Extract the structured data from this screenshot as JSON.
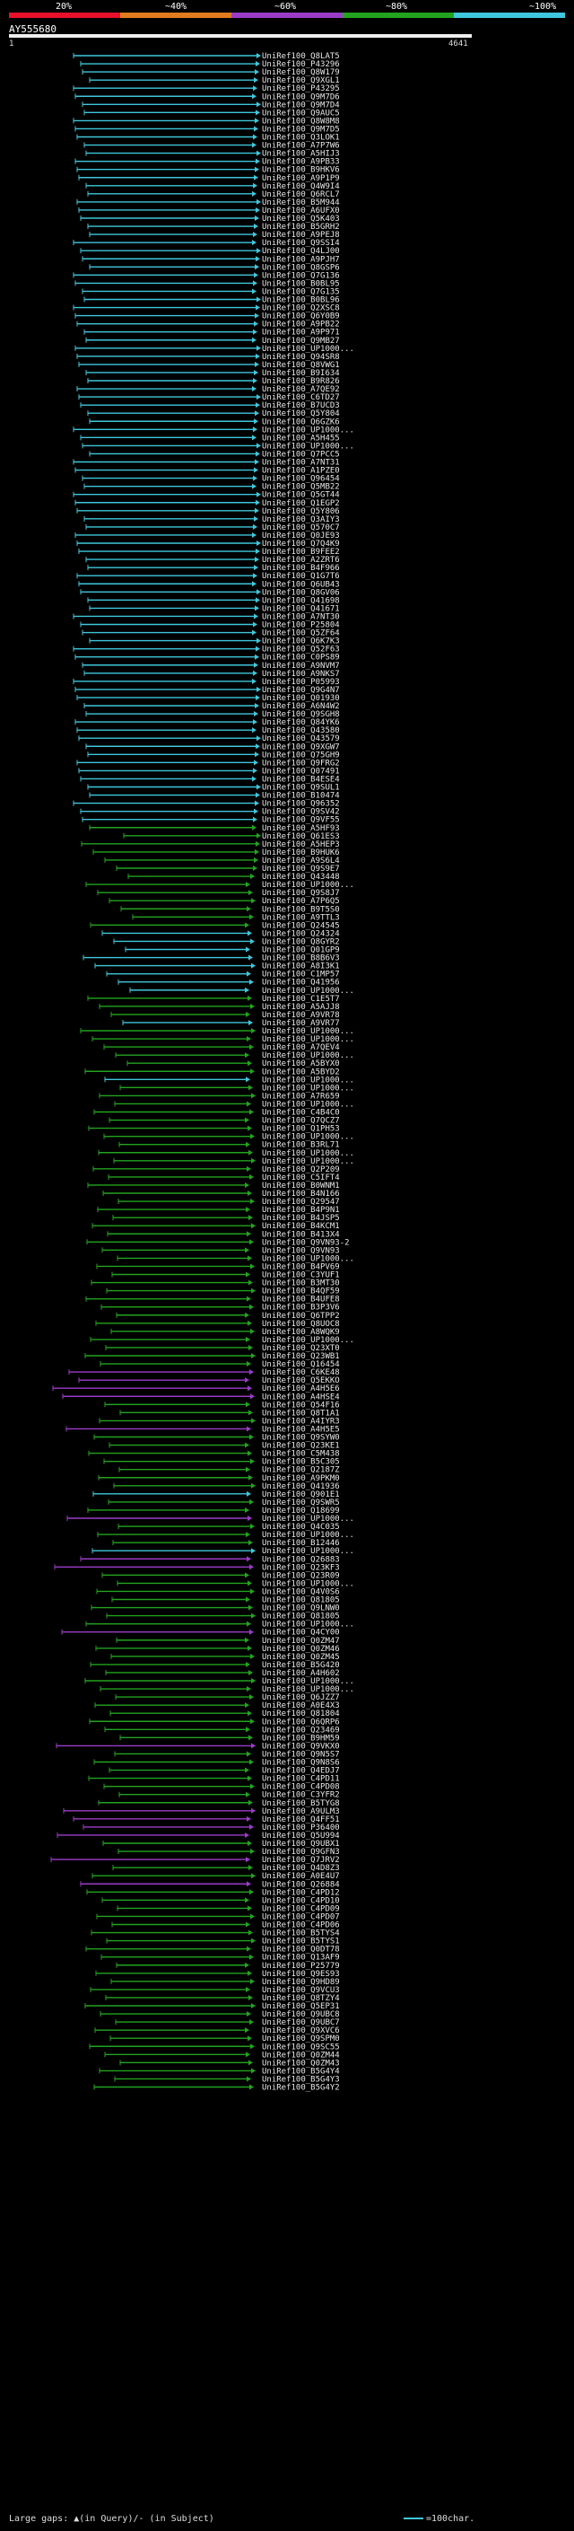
{
  "scale": {
    "ticks": [
      "20%",
      "~40%",
      "~60%",
      "~80%",
      "~100%"
    ],
    "colors": [
      "#e8102b",
      "#e07b20",
      "#9b3cc8",
      "#23a31f",
      "#3fc7db"
    ]
  },
  "query": {
    "title": "AY555680",
    "start": "1",
    "end": "4641"
  },
  "footer": {
    "gaps": "Large gaps: ▲(in Query)/- (in Subject)",
    "scale_label": "=100char."
  },
  "hits": [
    {
      "label": "UniRef100_Q8LAT5",
      "color": "#3fc7db"
    },
    {
      "label": "UniRef100_P43296",
      "color": "#3fc7db"
    },
    {
      "label": "UniRef100_Q8W179",
      "color": "#3fc7db"
    },
    {
      "label": "UniRef100_Q9XGL1",
      "color": "#3fc7db"
    },
    {
      "label": "UniRef100_P43295",
      "color": "#3fc7db"
    },
    {
      "label": "UniRef100_Q9M7D6",
      "color": "#3fc7db"
    },
    {
      "label": "UniRef100_Q9M7D4",
      "color": "#3fc7db"
    },
    {
      "label": "UniRef100_Q9AUC5",
      "color": "#3fc7db"
    },
    {
      "label": "UniRef100_Q8W8M8",
      "color": "#3fc7db"
    },
    {
      "label": "UniRef100_Q9M7D5",
      "color": "#3fc7db"
    },
    {
      "label": "UniRef100_Q3LOK1",
      "color": "#3fc7db"
    },
    {
      "label": "UniRef100_A7P7W6",
      "color": "#3fc7db"
    },
    {
      "label": "UniRef100_A5HIJ3",
      "color": "#3fc7db"
    },
    {
      "label": "UniRef100_A9PB33",
      "color": "#3fc7db"
    },
    {
      "label": "UniRef100_B9HKV6",
      "color": "#3fc7db"
    },
    {
      "label": "UniRef100_A9P1P9",
      "color": "#3fc7db"
    },
    {
      "label": "UniRef100_Q4W9I4",
      "color": "#3fc7db"
    },
    {
      "label": "UniRef100_Q6RCL7",
      "color": "#3fc7db"
    },
    {
      "label": "UniRef100_B5M944",
      "color": "#3fc7db"
    },
    {
      "label": "UniRef100_A6UFX0",
      "color": "#3fc7db"
    },
    {
      "label": "UniRef100_Q5K403",
      "color": "#3fc7db"
    },
    {
      "label": "UniRef100_B5GRH2",
      "color": "#3fc7db"
    },
    {
      "label": "UniRef100_A9PEJ8",
      "color": "#3fc7db"
    },
    {
      "label": "UniRef100_Q9SSI4",
      "color": "#3fc7db"
    },
    {
      "label": "UniRef100_Q4LJ00",
      "color": "#3fc7db"
    },
    {
      "label": "UniRef100_A9PJH7",
      "color": "#3fc7db"
    },
    {
      "label": "UniRef100_Q8GSP6",
      "color": "#3fc7db"
    },
    {
      "label": "UniRef100_Q7G136",
      "color": "#3fc7db"
    },
    {
      "label": "UniRef100_B0BL95",
      "color": "#3fc7db"
    },
    {
      "label": "UniRef100_Q7G135",
      "color": "#3fc7db"
    },
    {
      "label": "UniRef100_B0BL96",
      "color": "#3fc7db"
    },
    {
      "label": "UniRef100_Q2XSC8",
      "color": "#3fc7db"
    },
    {
      "label": "UniRef100_Q6Y0B9",
      "color": "#3fc7db"
    },
    {
      "label": "UniRef100_A9PB22",
      "color": "#3fc7db"
    },
    {
      "label": "UniRef100_A9P971",
      "color": "#3fc7db"
    },
    {
      "label": "UniRef100_Q9MB27",
      "color": "#3fc7db"
    },
    {
      "label": "UniRef100_UP1000...",
      "color": "#3fc7db"
    },
    {
      "label": "UniRef100_Q94SR8",
      "color": "#3fc7db"
    },
    {
      "label": "UniRef100_Q8VWG1",
      "color": "#3fc7db"
    },
    {
      "label": "UniRef100_B9I634",
      "color": "#3fc7db"
    },
    {
      "label": "UniRef100_B9R826",
      "color": "#3fc7db"
    },
    {
      "label": "UniRef100_A7QE92",
      "color": "#3fc7db"
    },
    {
      "label": "UniRef100_C6TD27",
      "color": "#3fc7db"
    },
    {
      "label": "UniRef100_B7UCD3",
      "color": "#3fc7db"
    },
    {
      "label": "UniRef100_Q5Y804",
      "color": "#3fc7db"
    },
    {
      "label": "UniRef100_Q6GZK6",
      "color": "#3fc7db"
    },
    {
      "label": "UniRef100_UP1000...",
      "color": "#3fc7db"
    },
    {
      "label": "UniRef100_A5H455",
      "color": "#3fc7db"
    },
    {
      "label": "UniRef100_UP1000...",
      "color": "#3fc7db"
    },
    {
      "label": "UniRef100_Q7PCC5",
      "color": "#3fc7db"
    },
    {
      "label": "UniRef100_A7NT31",
      "color": "#3fc7db"
    },
    {
      "label": "UniRef100_A1PZE0",
      "color": "#3fc7db"
    },
    {
      "label": "UniRef100_Q96454",
      "color": "#3fc7db"
    },
    {
      "label": "UniRef100_Q5MB22",
      "color": "#3fc7db"
    },
    {
      "label": "UniRef100_Q5GT44",
      "color": "#3fc7db"
    },
    {
      "label": "UniRef100_Q1EGP2",
      "color": "#3fc7db"
    },
    {
      "label": "UniRef100_Q5Y806",
      "color": "#3fc7db"
    },
    {
      "label": "UniRef100_Q3AIY3",
      "color": "#3fc7db"
    },
    {
      "label": "UniRef100_Q570C7",
      "color": "#3fc7db"
    },
    {
      "label": "UniRef100_Q0JE93",
      "color": "#3fc7db"
    },
    {
      "label": "UniRef100_Q7Q4K9",
      "color": "#3fc7db"
    },
    {
      "label": "UniRef100_B9FEE2",
      "color": "#3fc7db"
    },
    {
      "label": "UniRef100_A2ZRT6",
      "color": "#3fc7db"
    },
    {
      "label": "UniRef100_B4F966",
      "color": "#3fc7db"
    },
    {
      "label": "UniRef100_Q1G7T6",
      "color": "#3fc7db"
    },
    {
      "label": "UniRef100_Q6UB43",
      "color": "#3fc7db"
    },
    {
      "label": "UniRef100_Q8GV06",
      "color": "#3fc7db"
    },
    {
      "label": "UniRef100_Q41698",
      "color": "#3fc7db"
    },
    {
      "label": "UniRef100_Q41671",
      "color": "#3fc7db"
    },
    {
      "label": "UniRef100_A7NT30",
      "color": "#3fc7db"
    },
    {
      "label": "UniRef100_P25804",
      "color": "#3fc7db"
    },
    {
      "label": "UniRef100_Q5ZF64",
      "color": "#3fc7db"
    },
    {
      "label": "UniRef100_Q6K7K3",
      "color": "#3fc7db"
    },
    {
      "label": "UniRef100_Q52F63",
      "color": "#3fc7db"
    },
    {
      "label": "UniRef100_C0PS89",
      "color": "#3fc7db"
    },
    {
      "label": "UniRef100_A9NVM7",
      "color": "#3fc7db"
    },
    {
      "label": "UniRef100_A9NKS7",
      "color": "#3fc7db"
    },
    {
      "label": "UniRef100_P05993",
      "color": "#3fc7db"
    },
    {
      "label": "UniRef100_Q9G4N7",
      "color": "#3fc7db"
    },
    {
      "label": "UniRef100_Q01930",
      "color": "#3fc7db"
    },
    {
      "label": "UniRef100_A6N4W2",
      "color": "#3fc7db"
    },
    {
      "label": "UniRef100_Q9SGH8",
      "color": "#3fc7db"
    },
    {
      "label": "UniRef100_Q84YK6",
      "color": "#3fc7db"
    },
    {
      "label": "UniRef100_Q43580",
      "color": "#3fc7db"
    },
    {
      "label": "UniRef100_Q43579",
      "color": "#3fc7db"
    },
    {
      "label": "UniRef100_Q9XGW7",
      "color": "#3fc7db"
    },
    {
      "label": "UniRef100_Q75GH9",
      "color": "#3fc7db"
    },
    {
      "label": "UniRef100_Q9FRG2",
      "color": "#3fc7db"
    },
    {
      "label": "UniRef100_Q07491",
      "color": "#3fc7db"
    },
    {
      "label": "UniRef100_B4ESE4",
      "color": "#3fc7db"
    },
    {
      "label": "UniRef100_Q9SUL1",
      "color": "#3fc7db"
    },
    {
      "label": "UniRef100_B10474",
      "color": "#3fc7db"
    },
    {
      "label": "UniRef100_Q96352",
      "color": "#3fc7db"
    },
    {
      "label": "UniRef100_Q9SV42",
      "color": "#3fc7db"
    },
    {
      "label": "UniRef100_Q9VF55",
      "color": "#3fc7db"
    },
    {
      "label": "UniRef100_A5HF93",
      "color": "#23a31f"
    },
    {
      "label": "UniRef100_Q61ES3",
      "color": "#23a31f"
    },
    {
      "label": "UniRef100_A5HEP3",
      "color": "#23a31f"
    },
    {
      "label": "UniRef100_B9HUK6",
      "color": "#23a31f"
    },
    {
      "label": "UniRef100_A9S6L4",
      "color": "#23a31f"
    },
    {
      "label": "UniRef100_Q9S9E7",
      "color": "#23a31f"
    },
    {
      "label": "UniRef100_Q43448",
      "color": "#23a31f"
    },
    {
      "label": "UniRef100_UP1000...",
      "color": "#23a31f"
    },
    {
      "label": "UniRef100_Q9S8J7",
      "color": "#23a31f"
    },
    {
      "label": "UniRef100_A7P6Q5",
      "color": "#23a31f"
    },
    {
      "label": "UniRef100_B9T5S0",
      "color": "#23a31f"
    },
    {
      "label": "UniRef100_A9TTL3",
      "color": "#23a31f"
    },
    {
      "label": "UniRef100_Q24545",
      "color": "#23a31f"
    },
    {
      "label": "UniRef100_Q24324",
      "color": "#3fc7db"
    },
    {
      "label": "UniRef100_Q8GYR2",
      "color": "#3fc7db"
    },
    {
      "label": "UniRef100_Q01GP9",
      "color": "#3fc7db"
    },
    {
      "label": "UniRef100_B8B6V3",
      "color": "#3fc7db"
    },
    {
      "label": "UniRef100_A8I3K1",
      "color": "#3fc7db"
    },
    {
      "label": "UniRef100_C1MP57",
      "color": "#3fc7db"
    },
    {
      "label": "UniRef100_Q41956",
      "color": "#3fc7db"
    },
    {
      "label": "UniRef100_UP1000...",
      "color": "#3fc7db"
    },
    {
      "label": "UniRef100_C1E5T7",
      "color": "#23a31f"
    },
    {
      "label": "UniRef100_A5AJJ8",
      "color": "#23a31f"
    },
    {
      "label": "UniRef100_A9VR78",
      "color": "#23a31f"
    },
    {
      "label": "UniRef100_A9VR77",
      "color": "#3fc7db"
    },
    {
      "label": "UniRef100_UP1000...",
      "color": "#23a31f"
    },
    {
      "label": "UniRef100_UP1000...",
      "color": "#23a31f"
    },
    {
      "label": "UniRef100_A7QEV4",
      "color": "#23a31f"
    },
    {
      "label": "UniRef100_UP1000...",
      "color": "#23a31f"
    },
    {
      "label": "UniRef100_A5BYX0",
      "color": "#23a31f"
    },
    {
      "label": "UniRef100_A5BYD2",
      "color": "#23a31f"
    },
    {
      "label": "UniRef100_UP1000...",
      "color": "#3fc7db"
    },
    {
      "label": "UniRef100_UP1000...",
      "color": "#23a31f"
    },
    {
      "label": "UniRef100_A7R659",
      "color": "#23a31f"
    },
    {
      "label": "UniRef100_UP1000...",
      "color": "#23a31f"
    },
    {
      "label": "UniRef100_C4B4C0",
      "color": "#23a31f"
    },
    {
      "label": "UniRef100_Q7QCZ7",
      "color": "#23a31f"
    },
    {
      "label": "UniRef100_Q1PH53",
      "color": "#23a31f"
    },
    {
      "label": "UniRef100_UP1000...",
      "color": "#23a31f"
    },
    {
      "label": "UniRef100_B3RL71",
      "color": "#23a31f"
    },
    {
      "label": "UniRef100_UP1000...",
      "color": "#23a31f"
    },
    {
      "label": "UniRef100_UP1000...",
      "color": "#23a31f"
    },
    {
      "label": "UniRef100_Q2P209",
      "color": "#23a31f"
    },
    {
      "label": "UniRef100_C5IFT4",
      "color": "#23a31f"
    },
    {
      "label": "UniRef100_B0WNM1",
      "color": "#23a31f"
    },
    {
      "label": "UniRef100_B4N166",
      "color": "#23a31f"
    },
    {
      "label": "UniRef100_Q29547",
      "color": "#23a31f"
    },
    {
      "label": "UniRef100_B4P9N1",
      "color": "#23a31f"
    },
    {
      "label": "UniRef100_B4JSP5",
      "color": "#23a31f"
    },
    {
      "label": "UniRef100_B4KCM1",
      "color": "#23a31f"
    },
    {
      "label": "UniRef100_B413X4",
      "color": "#23a31f"
    },
    {
      "label": "UniRef100_Q9VN93-2",
      "color": "#23a31f"
    },
    {
      "label": "UniRef100_Q9VN93",
      "color": "#23a31f"
    },
    {
      "label": "UniRef100_UP1000...",
      "color": "#23a31f"
    },
    {
      "label": "UniRef100_B4PV69",
      "color": "#23a31f"
    },
    {
      "label": "UniRef100_C3YUF1",
      "color": "#23a31f"
    },
    {
      "label": "UniRef100_B3MT30",
      "color": "#23a31f"
    },
    {
      "label": "UniRef100_B4QF59",
      "color": "#23a31f"
    },
    {
      "label": "UniRef100_B4UFE8",
      "color": "#23a31f"
    },
    {
      "label": "UniRef100_B3P3V6",
      "color": "#23a31f"
    },
    {
      "label": "UniRef100_Q6TPP2",
      "color": "#23a31f"
    },
    {
      "label": "UniRef100_Q8UOC8",
      "color": "#23a31f"
    },
    {
      "label": "UniRef100_A8WQK9",
      "color": "#23a31f"
    },
    {
      "label": "UniRef100_UP1000...",
      "color": "#23a31f"
    },
    {
      "label": "UniRef100_Q23XT0",
      "color": "#23a31f"
    },
    {
      "label": "UniRef100_Q23WB1",
      "color": "#23a31f"
    },
    {
      "label": "UniRef100_Q16454",
      "color": "#23a31f"
    },
    {
      "label": "UniRef100_C6KE48",
      "color": "#9b3cc8"
    },
    {
      "label": "UniRef100_Q5EKKO",
      "color": "#9b3cc8"
    },
    {
      "label": "UniRef100_A4H5E6",
      "color": "#9b3cc8"
    },
    {
      "label": "UniRef100_A4HSE4",
      "color": "#9b3cc8"
    },
    {
      "label": "UniRef100_Q54F16",
      "color": "#23a31f"
    },
    {
      "label": "UniRef100_Q8T1A1",
      "color": "#23a31f"
    },
    {
      "label": "UniRef100_A4IYR3",
      "color": "#23a31f"
    },
    {
      "label": "UniRef100_A4H5E5",
      "color": "#9b3cc8"
    },
    {
      "label": "UniRef100_Q9SYW0",
      "color": "#23a31f"
    },
    {
      "label": "UniRef100_Q23KE1",
      "color": "#23a31f"
    },
    {
      "label": "UniRef100_C5M438",
      "color": "#23a31f"
    },
    {
      "label": "UniRef100_B5C305",
      "color": "#23a31f"
    },
    {
      "label": "UniRef100_Q2187Z",
      "color": "#23a31f"
    },
    {
      "label": "UniRef100_A9PKM0",
      "color": "#23a31f"
    },
    {
      "label": "UniRef100_Q41936",
      "color": "#23a31f"
    },
    {
      "label": "UniRef100_Q901E1",
      "color": "#3fc7db"
    },
    {
      "label": "UniRef100_Q9SWR5",
      "color": "#23a31f"
    },
    {
      "label": "UniRef100_Q18699",
      "color": "#23a31f"
    },
    {
      "label": "UniRef100_UP1000...",
      "color": "#9b3cc8"
    },
    {
      "label": "UniRef100_Q4C035",
      "color": "#23a31f"
    },
    {
      "label": "UniRef100_UP1000...",
      "color": "#23a31f"
    },
    {
      "label": "UniRef100_B12446",
      "color": "#23a31f"
    },
    {
      "label": "UniRef100_UP1000...",
      "color": "#3fc7db"
    },
    {
      "label": "UniRef100_Q26883",
      "color": "#9b3cc8"
    },
    {
      "label": "UniRef100_Q23KF3",
      "color": "#9b3cc8"
    },
    {
      "label": "UniRef100_Q23R09",
      "color": "#23a31f"
    },
    {
      "label": "UniRef100_UP1000...",
      "color": "#23a31f"
    },
    {
      "label": "UniRef100_Q4V0S6",
      "color": "#23a31f"
    },
    {
      "label": "UniRef100_Q81805",
      "color": "#23a31f"
    },
    {
      "label": "UniRef100_Q9LNW0",
      "color": "#23a31f"
    },
    {
      "label": "UniRef100_Q81805",
      "color": "#23a31f"
    },
    {
      "label": "UniRef100_UP1000...",
      "color": "#23a31f"
    },
    {
      "label": "UniRef100_Q4CY00",
      "color": "#9b3cc8"
    },
    {
      "label": "UniRef100_Q0ZM47",
      "color": "#23a31f"
    },
    {
      "label": "UniRef100_Q0ZM46",
      "color": "#23a31f"
    },
    {
      "label": "UniRef100_Q0ZM45",
      "color": "#23a31f"
    },
    {
      "label": "UniRef100_B5G420",
      "color": "#23a31f"
    },
    {
      "label": "UniRef100_A4H602",
      "color": "#23a31f"
    },
    {
      "label": "UniRef100_UP1000...",
      "color": "#23a31f"
    },
    {
      "label": "UniRef100_UP1000...",
      "color": "#23a31f"
    },
    {
      "label": "UniRef100_Q6JZZ7",
      "color": "#23a31f"
    },
    {
      "label": "UniRef100_A0E4X3",
      "color": "#23a31f"
    },
    {
      "label": "UniRef100_Q81804",
      "color": "#23a31f"
    },
    {
      "label": "UniRef100_Q6QRP6",
      "color": "#23a31f"
    },
    {
      "label": "UniRef100_Q23469",
      "color": "#23a31f"
    },
    {
      "label": "UniRef100_B9HM59",
      "color": "#23a31f"
    },
    {
      "label": "UniRef100_Q9VKX0",
      "color": "#9b3cc8"
    },
    {
      "label": "UniRef100_Q9N5S7",
      "color": "#23a31f"
    },
    {
      "label": "UniRef100_Q9N8S6",
      "color": "#23a31f"
    },
    {
      "label": "UniRef100_Q4EDJ7",
      "color": "#23a31f"
    },
    {
      "label": "UniRef100_C4PD11",
      "color": "#23a31f"
    },
    {
      "label": "UniRef100_C4PD08",
      "color": "#23a31f"
    },
    {
      "label": "UniRef100_C3YFR2",
      "color": "#23a31f"
    },
    {
      "label": "UniRef100_B5TYG8",
      "color": "#23a31f"
    },
    {
      "label": "UniRef100_A9ULM3",
      "color": "#9b3cc8"
    },
    {
      "label": "UniRef100_Q4FF51",
      "color": "#9b3cc8"
    },
    {
      "label": "UniRef100_P36400",
      "color": "#9b3cc8"
    },
    {
      "label": "UniRef100_Q5U994",
      "color": "#9b3cc8"
    },
    {
      "label": "UniRef100_Q9UBX1",
      "color": "#23a31f"
    },
    {
      "label": "UniRef100_Q9GFN3",
      "color": "#23a31f"
    },
    {
      "label": "UniRef100_Q7JRV2",
      "color": "#9b3cc8"
    },
    {
      "label": "UniRef100_Q4D8Z3",
      "color": "#23a31f"
    },
    {
      "label": "UniRef100_A0E4U7",
      "color": "#23a31f"
    },
    {
      "label": "UniRef100_Q26884",
      "color": "#9b3cc8"
    },
    {
      "label": "UniRef100_C4PD12",
      "color": "#23a31f"
    },
    {
      "label": "UniRef100_C4PD10",
      "color": "#23a31f"
    },
    {
      "label": "UniRef100_C4PD09",
      "color": "#23a31f"
    },
    {
      "label": "UniRef100_C4PD07",
      "color": "#23a31f"
    },
    {
      "label": "UniRef100_C4PD06",
      "color": "#23a31f"
    },
    {
      "label": "UniRef100_B5TYS4",
      "color": "#23a31f"
    },
    {
      "label": "UniRef100_B5TYS1",
      "color": "#23a31f"
    },
    {
      "label": "UniRef100_Q0DT78",
      "color": "#23a31f"
    },
    {
      "label": "UniRef100_Q13AF9",
      "color": "#23a31f"
    },
    {
      "label": "UniRef100_P25779",
      "color": "#23a31f"
    },
    {
      "label": "UniRef100_Q9ES93",
      "color": "#23a31f"
    },
    {
      "label": "UniRef100_Q9HD89",
      "color": "#23a31f"
    },
    {
      "label": "UniRef100_Q9VCU3",
      "color": "#23a31f"
    },
    {
      "label": "UniRef100_Q8TZY4",
      "color": "#23a31f"
    },
    {
      "label": "UniRef100_Q5EP31",
      "color": "#23a31f"
    },
    {
      "label": "UniRef100_Q9UBC8",
      "color": "#23a31f"
    },
    {
      "label": "UniRef100_Q9UBC7",
      "color": "#23a31f"
    },
    {
      "label": "UniRef100_Q9XVC6",
      "color": "#23a31f"
    },
    {
      "label": "UniRef100_Q9SPM0",
      "color": "#23a31f"
    },
    {
      "label": "UniRef100_Q9SC55",
      "color": "#23a31f"
    },
    {
      "label": "UniRef100_Q0ZM44",
      "color": "#23a31f"
    },
    {
      "label": "UniRef100_Q0ZM43",
      "color": "#23a31f"
    },
    {
      "label": "UniRef100_B5G4Y4",
      "color": "#23a31f"
    },
    {
      "label": "UniRef100_B5G4Y3",
      "color": "#23a31f"
    },
    {
      "label": "UniRef100_B5G4Y2",
      "color": "#23a31f"
    }
  ]
}
